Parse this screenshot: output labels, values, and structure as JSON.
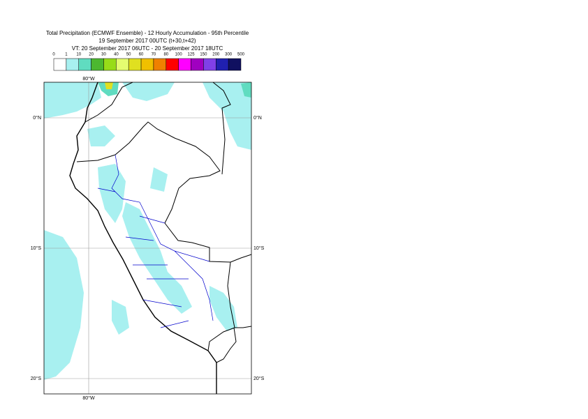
{
  "header": {
    "title_lines": [
      "Total Precipitation (ECMWF Ensemble) - 12 Hourly Accumulation - 95th Percentile",
      "19 September 2017 00UTC (t+30,t+42)",
      "VT: 20 September 2017 06UTC - 20 September 2017 18UTC"
    ]
  },
  "legend": {
    "labels": [
      "0",
      "1",
      "10",
      "20",
      "30",
      "40",
      "50",
      "60",
      "70",
      "80",
      "100",
      "125",
      "150",
      "200",
      "300",
      "500"
    ],
    "colors": [
      "#ffffff",
      "#a8f0f0",
      "#60dcc0",
      "#4cb830",
      "#98dc18",
      "#e4fc70",
      "#e0e020",
      "#f0c000",
      "#f08000",
      "#ff0000",
      "#ff00ff",
      "#a000c0",
      "#8040e8",
      "#2020b0",
      "#101060"
    ]
  },
  "map": {
    "top_labels": [
      "80°W"
    ],
    "bottom_labels": [
      "80°W"
    ],
    "left_labels": [
      "0°N",
      "10°S",
      "20°S"
    ],
    "right_labels": [
      "0°N",
      "10°S",
      "20°S"
    ]
  }
}
